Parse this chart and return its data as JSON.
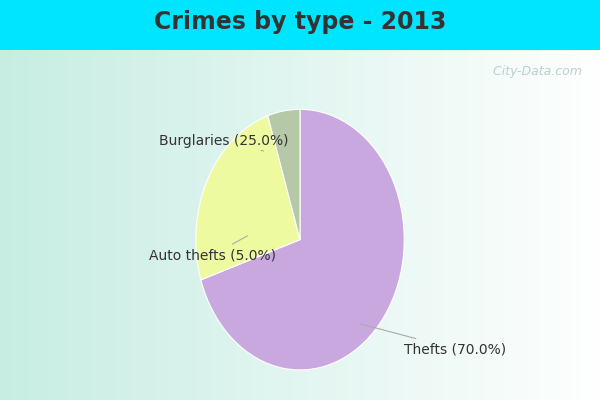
{
  "title": "Crimes by type - 2013",
  "slices": [
    {
      "label": "Thefts (70.0%)",
      "value": 70.0,
      "color": "#C9A8DF"
    },
    {
      "label": "Burglaries (25.0%)",
      "value": 25.0,
      "color": "#EEFAA0"
    },
    {
      "label": "Auto thefts (5.0%)",
      "value": 5.0,
      "color": "#B5C9A8"
    }
  ],
  "background_top": "#00E5FF",
  "background_main_color": "#C8EEE4",
  "title_fontsize": 17,
  "label_fontsize": 10,
  "watermark": "  City-Data.com",
  "startangle": 90,
  "title_color": "#333333"
}
